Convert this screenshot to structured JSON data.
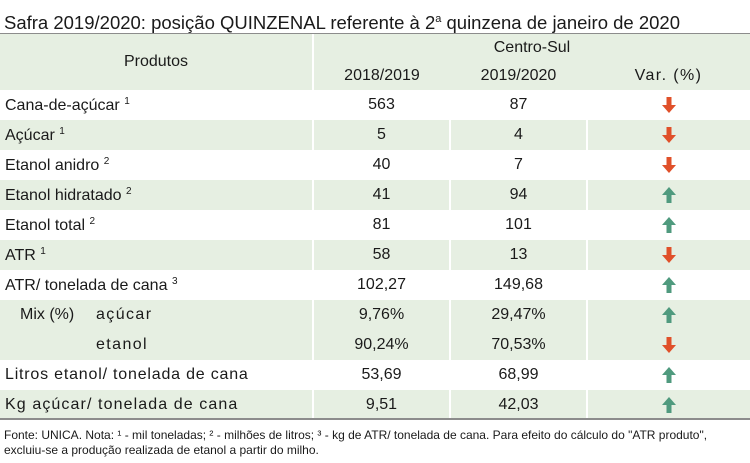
{
  "title": {
    "prefix": "Safra 2019/2020: posição QUINZENAL referente à 2",
    "sup": "a",
    "suffix": " quinzena de janeiro de 2020"
  },
  "header": {
    "products": "Produtos",
    "region": "Centro-Sul",
    "col_2018": "2018/2019",
    "col_2019": "2019/2020",
    "col_var": "Var. (%)"
  },
  "rows": [
    {
      "label": "Cana-de-açúcar",
      "note": "1",
      "v2018": "563",
      "v2019": "87",
      "trend": "down"
    },
    {
      "label": "Açúcar",
      "note": "1",
      "v2018": "5",
      "v2019": "4",
      "trend": "down"
    },
    {
      "label": "Etanol anidro",
      "note": "2",
      "v2018": "40",
      "v2019": "7",
      "trend": "down"
    },
    {
      "label": "Etanol hidratado",
      "note": "2",
      "v2018": "41",
      "v2019": "94",
      "trend": "up"
    },
    {
      "label": "Etanol total",
      "note": "2",
      "v2018": "81",
      "v2019": "101",
      "trend": "up"
    },
    {
      "label": "ATR",
      "note": "1",
      "v2018": "58",
      "v2019": "13",
      "trend": "down"
    },
    {
      "label": "ATR/ tonelada de cana",
      "note": "3",
      "v2018": "102,27",
      "v2019": "149,68",
      "trend": "up"
    }
  ],
  "mix": {
    "label": "Mix (%)",
    "rows": [
      {
        "label": "açúcar",
        "v2018": "9,76%",
        "v2019": "29,47%",
        "trend": "up"
      },
      {
        "label": "etanol",
        "v2018": "90,24%",
        "v2019": "70,53%",
        "trend": "down"
      }
    ]
  },
  "tail_rows": [
    {
      "label": "Litros etanol/ tonelada de cana",
      "v2018": "53,69",
      "v2019": "68,99",
      "trend": "up"
    },
    {
      "label": "Kg açúcar/ tonelada de cana",
      "v2018": "9,51",
      "v2019": "42,03",
      "trend": "up"
    }
  ],
  "footnote": "Fonte: UNICA. Nota: ¹ - mil toneladas; ² - milhões de litros; ³ - kg de ATR/ tonelada de cana. Para efeito do cálculo do \"ATR produto\", excluiu-se a produção realizada de etanol a partir do milho.",
  "colors": {
    "row_tint": "#e6efe2",
    "arrow_up": "#4f9a7e",
    "arrow_down": "#e0502a"
  }
}
